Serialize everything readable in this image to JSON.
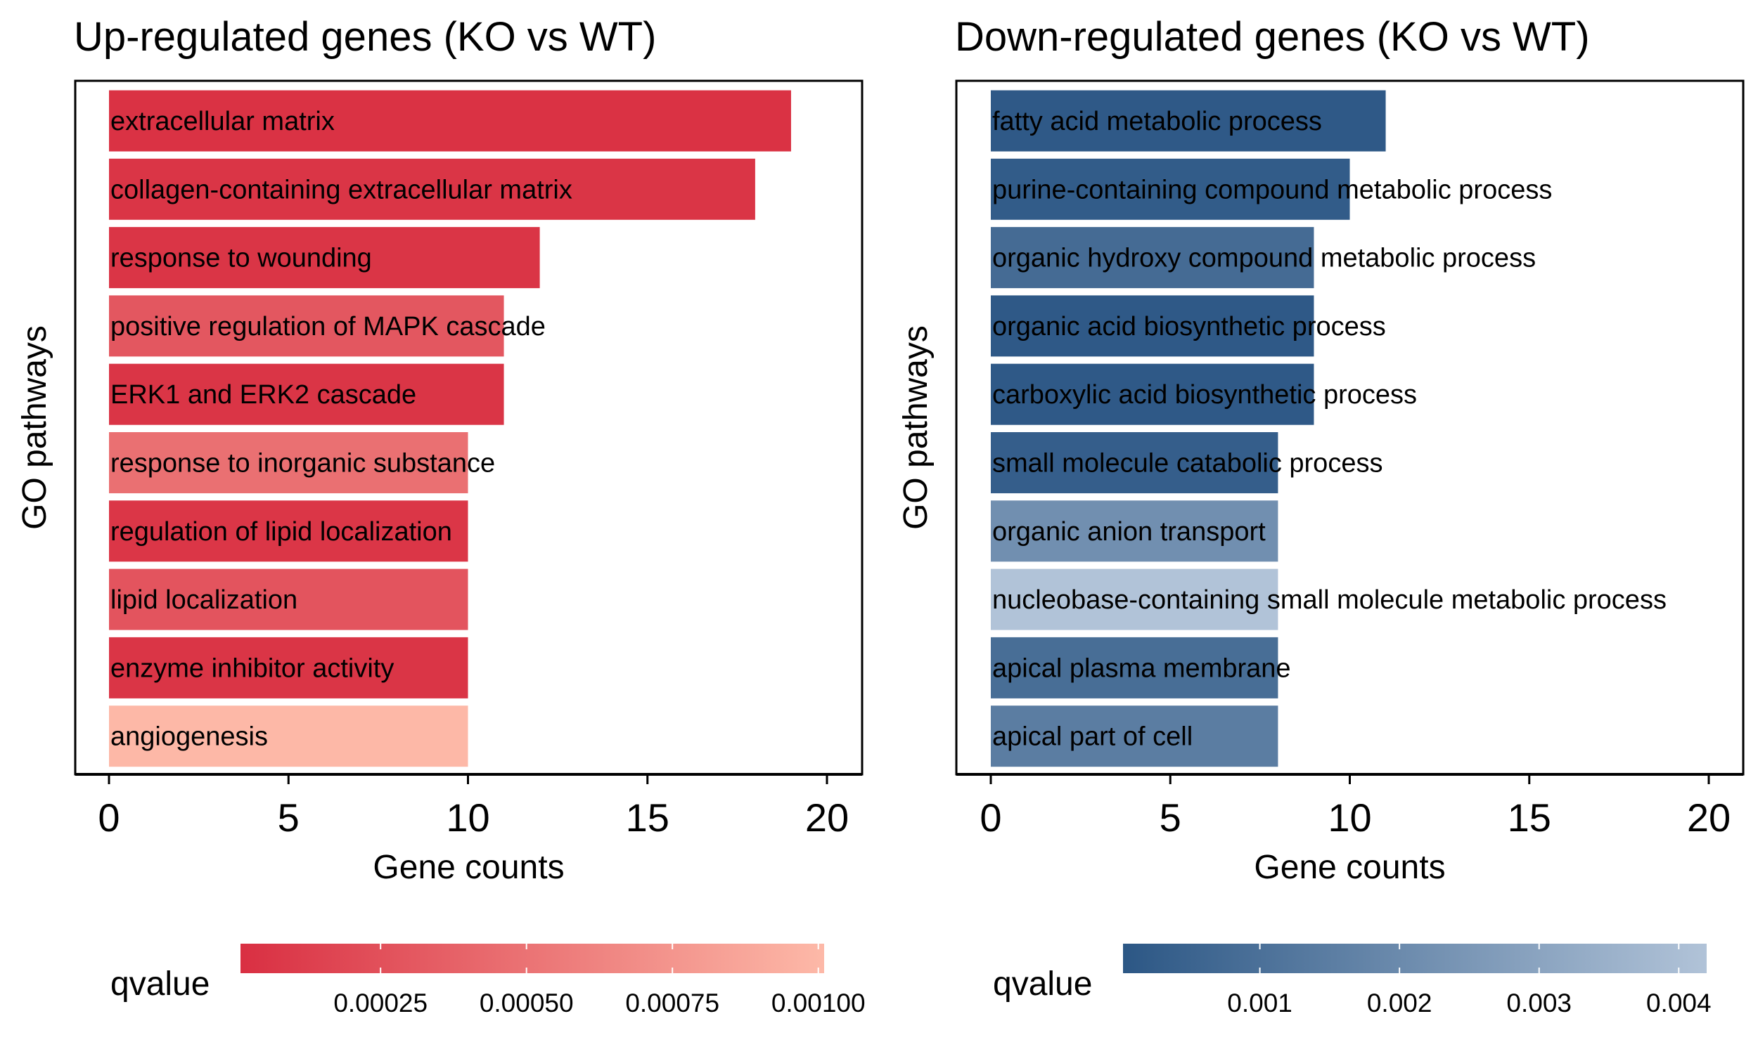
{
  "chart_data": [
    {
      "type": "bar",
      "orientation": "horizontal",
      "title": "Up-regulated genes (KO vs WT)",
      "xlabel": "Gene counts",
      "ylabel": "GO pathways",
      "xlim": [
        0,
        20
      ],
      "xticks": [
        0,
        5,
        10,
        15,
        20
      ],
      "categories": [
        "extracellular matrix",
        "collagen-containing extracellular matrix",
        "response to wounding",
        "positive regulation of MAPK cascade",
        "ERK1 and ERK2 cascade",
        "response to inorganic substance",
        "regulation of lipid localization",
        "lipid localization",
        "enzyme inhibitor activity",
        "angiogenesis"
      ],
      "values": [
        19,
        18,
        12,
        11,
        11,
        10,
        10,
        10,
        10,
        10
      ],
      "qvalues": [
        3e-05,
        5e-05,
        5e-05,
        0.0003,
        5e-05,
        0.00048,
        6e-05,
        0.00028,
        5e-05,
        0.001
      ],
      "legend": {
        "title": "qvalue",
        "placement": "bottom",
        "range": [
          1e-05,
          0.00101
        ],
        "ticks": [
          0.00025,
          0.0005,
          0.00075,
          0.001
        ],
        "tick_labels": [
          "0.00025",
          "0.00050",
          "0.00075",
          "0.00100"
        ],
        "color_low": "#d92f42",
        "color_high": "#fdb9a8"
      }
    },
    {
      "type": "bar",
      "orientation": "horizontal",
      "title": "Down-regulated genes (KO vs WT)",
      "xlabel": "Gene counts",
      "ylabel": "GO pathways",
      "xlim": [
        0,
        20
      ],
      "xticks": [
        0,
        5,
        10,
        15,
        20
      ],
      "categories": [
        "fatty acid metabolic process",
        "purine-containing compound metabolic process",
        "organic hydroxy compound metabolic process",
        "organic acid biosynthetic process",
        "carboxylic acid biosynthetic process",
        "small molecule catabolic process",
        "organic anion transport",
        "nucleobase-containing small molecule metabolic process",
        "apical plasma membrane",
        "apical part of cell"
      ],
      "values": [
        11,
        10,
        9,
        9,
        9,
        8,
        8,
        8,
        8,
        8
      ],
      "qvalues": [
        0.0001,
        0.0002,
        0.0008,
        0.0001,
        0.0001,
        0.0003,
        0.0022,
        0.0042,
        0.0009,
        0.0015
      ],
      "legend": {
        "title": "qvalue",
        "placement": "bottom",
        "range": [
          2e-05,
          0.0042
        ],
        "ticks": [
          0.001,
          0.002,
          0.003,
          0.004
        ],
        "tick_labels": [
          "0.001",
          "0.002",
          "0.003",
          "0.004"
        ],
        "color_low": "#2c5785",
        "color_high": "#b1c3d8"
      }
    }
  ]
}
